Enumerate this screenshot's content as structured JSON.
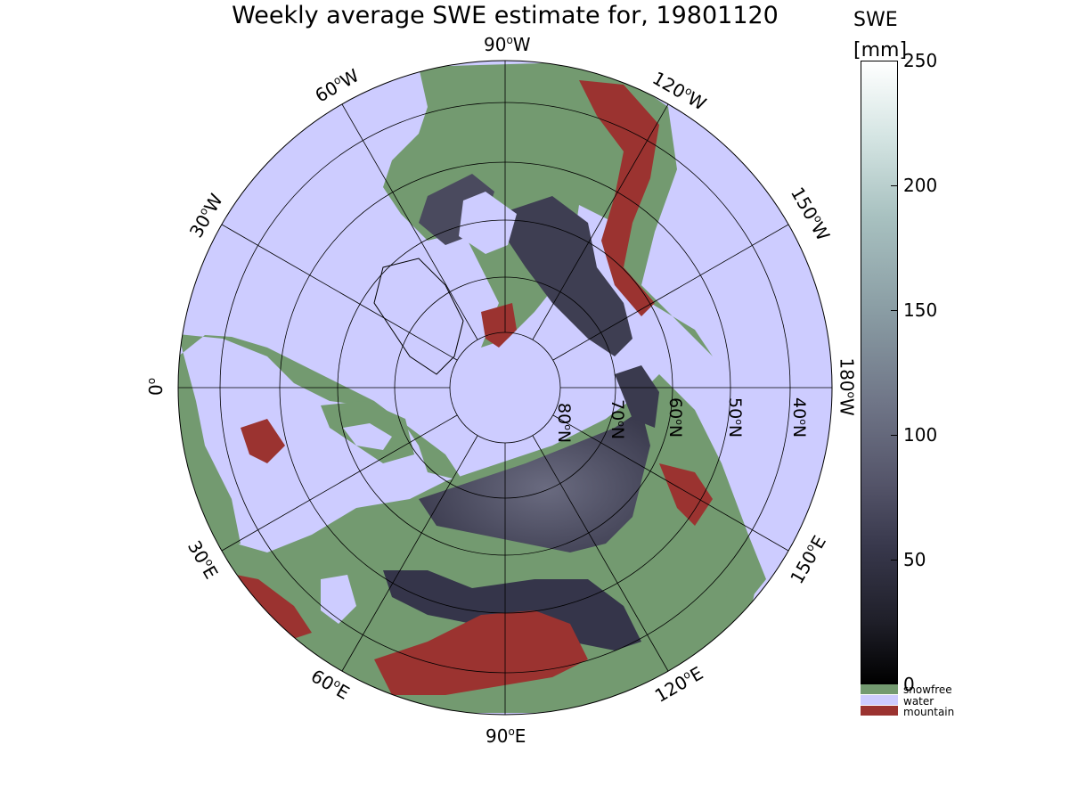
{
  "title": "Weekly average SWE estimate for, 19801120",
  "longitude_labels": [
    {
      "value": "90",
      "unit": "W"
    },
    {
      "value": "60",
      "unit": "W"
    },
    {
      "value": "120",
      "unit": "W"
    },
    {
      "value": "30",
      "unit": "W"
    },
    {
      "value": "150",
      "unit": "W"
    },
    {
      "value": "0",
      "unit": ""
    },
    {
      "value": "180",
      "unit": "W"
    },
    {
      "value": "30",
      "unit": "E"
    },
    {
      "value": "150",
      "unit": "E"
    },
    {
      "value": "60",
      "unit": "E"
    },
    {
      "value": "120",
      "unit": "E"
    },
    {
      "value": "90",
      "unit": "E"
    }
  ],
  "latitude_labels": [
    {
      "value": "80",
      "unit": "N"
    },
    {
      "value": "70",
      "unit": "N"
    },
    {
      "value": "60",
      "unit": "N"
    },
    {
      "value": "50",
      "unit": "N"
    },
    {
      "value": "40",
      "unit": "N"
    }
  ],
  "colorbar": {
    "title_line1": "SWE",
    "title_line2": "[mm]",
    "min": 0,
    "max": 250,
    "ticks": [
      "250",
      "200",
      "150",
      "100",
      "50",
      "0"
    ],
    "tick_values": [
      250,
      200,
      150,
      100,
      50,
      0
    ]
  },
  "legend": [
    {
      "label": "snowfree",
      "color": "#739a70"
    },
    {
      "label": "water",
      "color": "#cdccff"
    },
    {
      "label": "mountain",
      "color": "#9b3330"
    }
  ],
  "colors": {
    "water": "#cdccff",
    "snowfree": "#739a70",
    "mountain": "#9b3330",
    "snow_low": "#3a3a4e",
    "snow_mid": "#5f6074"
  }
}
